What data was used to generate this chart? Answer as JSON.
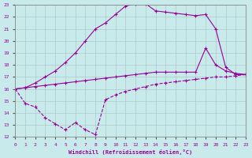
{
  "xlabel": "Windchill (Refroidissement éolien,°C)",
  "bg_color": "#c8eaea",
  "grid_color": "#b0c8c8",
  "line_color": "#990099",
  "xlim": [
    0,
    23
  ],
  "ylim": [
    12,
    23
  ],
  "xticks": [
    0,
    1,
    2,
    3,
    4,
    5,
    6,
    7,
    8,
    9,
    10,
    11,
    12,
    13,
    14,
    15,
    16,
    17,
    18,
    19,
    20,
    21,
    22,
    23
  ],
  "yticks": [
    12,
    13,
    14,
    15,
    16,
    17,
    18,
    19,
    20,
    21,
    22,
    23
  ],
  "series": [
    {
      "linestyle": "-",
      "x": [
        0,
        1,
        2,
        3,
        4,
        5,
        6,
        7,
        8,
        9,
        10,
        11,
        12,
        13,
        14,
        15,
        16,
        17,
        18,
        19,
        20,
        21,
        22,
        23
      ],
      "y": [
        16.0,
        16.1,
        16.5,
        17.0,
        17.5,
        18.2,
        19.0,
        20.0,
        21.0,
        21.5,
        22.2,
        22.9,
        23.1,
        23.1,
        22.5,
        22.4,
        22.3,
        22.2,
        22.1,
        22.2,
        21.0,
        17.8,
        17.2,
        17.2
      ]
    },
    {
      "linestyle": "-",
      "x": [
        0,
        1,
        2,
        3,
        4,
        5,
        6,
        7,
        8,
        9,
        10,
        11,
        12,
        13,
        14,
        15,
        16,
        17,
        18,
        19,
        20,
        21,
        22,
        23
      ],
      "y": [
        16.0,
        16.1,
        16.2,
        16.3,
        16.4,
        16.5,
        16.6,
        16.7,
        16.8,
        16.9,
        17.0,
        17.1,
        17.2,
        17.3,
        17.4,
        17.4,
        17.4,
        17.4,
        17.4,
        19.4,
        18.0,
        17.5,
        17.3,
        17.2
      ]
    },
    {
      "linestyle": "--",
      "x": [
        0,
        1,
        2,
        3,
        4,
        5,
        6,
        7,
        8,
        9,
        10,
        11,
        12,
        13,
        14,
        15,
        16,
        17,
        18,
        19,
        20,
        21,
        22,
        23
      ],
      "y": [
        16.0,
        14.8,
        14.5,
        13.6,
        13.1,
        12.6,
        13.2,
        12.6,
        12.2,
        15.1,
        15.5,
        15.8,
        16.0,
        16.2,
        16.4,
        16.5,
        16.6,
        16.7,
        16.8,
        16.9,
        17.0,
        17.0,
        17.1,
        17.2
      ]
    }
  ]
}
